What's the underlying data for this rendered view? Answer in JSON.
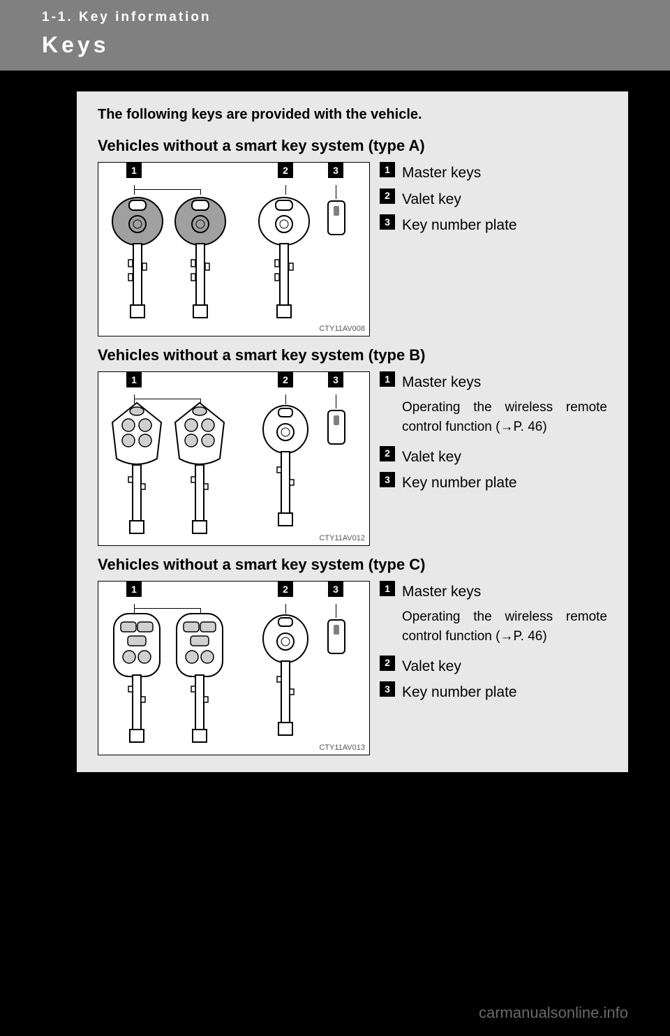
{
  "header": {
    "section": "1-1. Key information",
    "title": "Keys"
  },
  "intro": "The following keys are provided with the vehicle.",
  "sections": [
    {
      "heading": "Vehicles without a smart key system (type A)",
      "figure_id": "CTY11AV008",
      "key_style": "basic",
      "legend": [
        {
          "num": "1",
          "label": "Master keys",
          "sub": null
        },
        {
          "num": "2",
          "label": "Valet key",
          "sub": null
        },
        {
          "num": "3",
          "label": "Key number plate",
          "sub": null
        }
      ]
    },
    {
      "heading": "Vehicles without a smart key system (type B)",
      "figure_id": "CTY11AV012",
      "key_style": "remote_b",
      "legend": [
        {
          "num": "1",
          "label": "Master keys",
          "sub": "Operating the wireless remote control function (→P. 46)"
        },
        {
          "num": "2",
          "label": "Valet key",
          "sub": null
        },
        {
          "num": "3",
          "label": "Key number plate",
          "sub": null
        }
      ]
    },
    {
      "heading": "Vehicles without a smart key system (type C)",
      "figure_id": "CTY11AV013",
      "key_style": "remote_c",
      "legend": [
        {
          "num": "1",
          "label": "Master keys",
          "sub": "Operating the wireless remote control function (→P. 46)"
        },
        {
          "num": "2",
          "label": "Valet key",
          "sub": null
        },
        {
          "num": "3",
          "label": "Key number plate",
          "sub": null
        }
      ]
    }
  ],
  "colors": {
    "page_bg": "#000000",
    "header_bg": "#808080",
    "header_text": "#ffffff",
    "content_bg": "#e8e8e8",
    "figure_bg": "#ffffff",
    "figure_border": "#000000",
    "watermark": "#6a6a6a"
  },
  "footer": {
    "watermark": "carmanualsonline.info"
  }
}
